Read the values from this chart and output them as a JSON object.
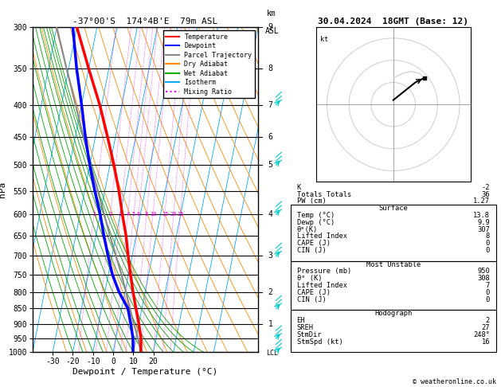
{
  "title_left": "-37°00'S  174°4B'E  79m ASL",
  "title_right": "30.04.2024  18GMT (Base: 12)",
  "xlabel": "Dewpoint / Temperature (°C)",
  "ylabel_left": "hPa",
  "bg_color": "#ffffff",
  "pressure_levels": [
    300,
    350,
    400,
    450,
    500,
    550,
    600,
    650,
    700,
    750,
    800,
    850,
    900,
    950,
    1000
  ],
  "temp_color": "#ff0000",
  "dewp_color": "#0000ff",
  "parcel_color": "#888888",
  "dry_adiabat_color": "#ff8800",
  "wet_adiabat_color": "#00aa00",
  "isotherm_color": "#00aaff",
  "mixing_ratio_color": "#ff00ff",
  "legend_entries": [
    "Temperature",
    "Dewpoint",
    "Parcel Trajectory",
    "Dry Adiabat",
    "Wet Adiabat",
    "Isotherm",
    "Mixing Ratio"
  ],
  "legend_colors": [
    "#ff0000",
    "#0000ff",
    "#888888",
    "#ff8800",
    "#00aa00",
    "#00aaff",
    "#ff00ff"
  ],
  "legend_styles": [
    "-",
    "-",
    "-",
    "-",
    "-",
    "-",
    ":"
  ],
  "indices_K": "-2",
  "indices_TT": "36",
  "indices_PW": "1.27",
  "surf_temp": "13.8",
  "surf_dewp": "9.9",
  "surf_theta": "307",
  "surf_li": "8",
  "surf_cape": "0",
  "surf_cin": "0",
  "mu_pres": "950",
  "mu_theta": "308",
  "mu_li": "7",
  "mu_cape": "0",
  "mu_cin": "0",
  "hodo_eh": "2",
  "hodo_sreh": "27",
  "hodo_stmdir": "248°",
  "hodo_stmspd": "16",
  "temp_profile_p": [
    1000,
    950,
    900,
    850,
    800,
    750,
    700,
    650,
    600,
    550,
    500,
    450,
    400,
    350,
    300
  ],
  "temp_profile_t": [
    13.8,
    12.5,
    10.0,
    7.0,
    4.0,
    1.0,
    -2.0,
    -5.0,
    -9.0,
    -13.0,
    -18.0,
    -24.0,
    -31.0,
    -40.0,
    -50.0
  ],
  "dewp_profile_p": [
    1000,
    950,
    900,
    850,
    800,
    750,
    700,
    650,
    600,
    550,
    500,
    450,
    400,
    350,
    300
  ],
  "dewp_profile_t": [
    9.9,
    8.5,
    6.0,
    3.0,
    -3.0,
    -8.0,
    -12.0,
    -16.0,
    -20.0,
    -25.0,
    -30.0,
    -35.0,
    -40.0,
    -46.0,
    -52.0
  ],
  "parcel_profile_p": [
    1000,
    950,
    900,
    850,
    800,
    750,
    700,
    650,
    600,
    550,
    500,
    450,
    400,
    350,
    300
  ],
  "parcel_profile_t": [
    13.8,
    11.0,
    7.5,
    4.0,
    0.5,
    -3.5,
    -8.0,
    -13.0,
    -18.0,
    -23.5,
    -29.5,
    -36.0,
    -43.0,
    -51.0,
    -60.0
  ],
  "mixing_ratio_lines": [
    1,
    2,
    3,
    4,
    5,
    6,
    8,
    10,
    15,
    20,
    25
  ],
  "skew_factor": 32,
  "T_min": -40,
  "T_max": 40,
  "km_labels": {
    "300": "9",
    "350": "8",
    "400": "7",
    "450": "6",
    "500": "5",
    "550": "",
    "600": "4",
    "650": "",
    "700": "3",
    "750": "",
    "800": "2",
    "850": "",
    "900": "1",
    "950": "",
    "1000": ""
  },
  "lcl_pressure": 960,
  "copyright": "© weatheronline.co.uk",
  "wind_barb_color": "#00cccc",
  "wind_barb_pressures": [
    300,
    400,
    500,
    600,
    700,
    850,
    950,
    1000
  ],
  "hodo_u_black": [
    0,
    5,
    10,
    14
  ],
  "hodo_v_black": [
    2,
    6,
    10,
    12
  ],
  "hodo_u_gray": [
    14,
    12,
    8,
    4,
    0
  ],
  "hodo_v_gray": [
    12,
    14,
    15,
    14,
    12
  ]
}
